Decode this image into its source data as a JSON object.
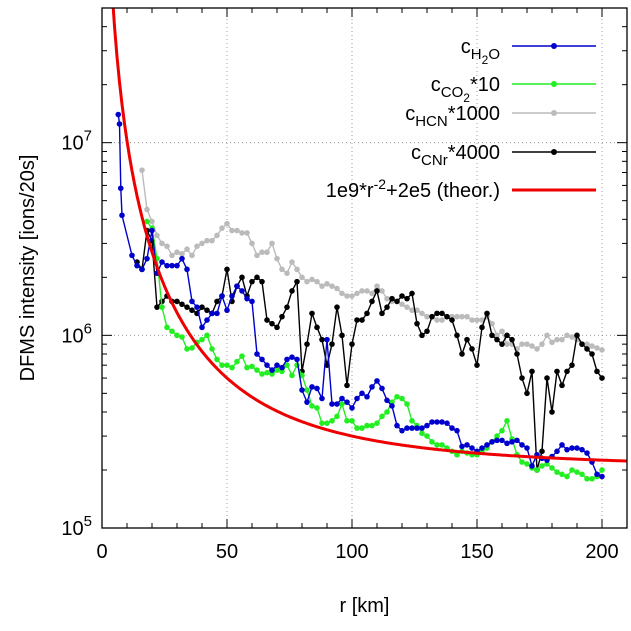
{
  "chart_data": {
    "type": "line",
    "xlabel": "r [km]",
    "ylabel": "DFMS intensity [ions/20s]",
    "xlim": [
      0,
      210
    ],
    "ylim": [
      100000,
      50000000
    ],
    "y_scale": "log",
    "grid": "dotted",
    "legend_position": "top-right",
    "x_ticks": [
      {
        "value": 0,
        "label": "0"
      },
      {
        "value": 50,
        "label": "50"
      },
      {
        "value": 100,
        "label": "100"
      },
      {
        "value": 150,
        "label": "150"
      },
      {
        "value": 200,
        "label": "200"
      }
    ],
    "y_ticks": [
      {
        "value": 100000,
        "base": "10",
        "exp": "5"
      },
      {
        "value": 1000000,
        "base": "10",
        "exp": "6"
      },
      {
        "value": 10000000,
        "base": "10",
        "exp": "7"
      }
    ],
    "series": [
      {
        "name": "cH2O",
        "legend": {
          "base": "c",
          "sub": "H",
          "sub2": "2",
          "sub3": "O",
          "suffix": ""
        },
        "color": "#0000cc",
        "x": [
          6.5,
          7,
          7.5,
          8,
          12,
          14,
          16,
          18,
          20,
          22,
          24,
          26,
          28,
          30,
          32,
          34,
          36,
          38,
          40,
          42,
          44,
          46,
          48,
          50,
          52,
          54,
          56,
          58,
          60,
          62,
          64,
          66,
          68,
          70,
          72,
          74,
          76,
          78,
          80,
          82,
          84,
          86,
          88,
          90,
          92,
          94,
          96,
          98,
          100,
          102,
          104,
          106,
          108,
          110,
          112,
          114,
          116,
          118,
          120,
          122,
          124,
          126,
          128,
          130,
          132,
          134,
          136,
          138,
          140,
          142,
          144,
          146,
          148,
          150,
          152,
          154,
          156,
          158,
          160,
          162,
          164,
          166,
          168,
          170,
          172,
          174,
          176,
          178,
          180,
          182,
          184,
          186,
          188,
          190,
          192,
          194,
          196,
          198,
          200
        ],
        "y": [
          14000000,
          12500000,
          5800000,
          4200000,
          2600000,
          2300000,
          2200000,
          2500000,
          3500000,
          2100000,
          2400000,
          2300000,
          2300000,
          2300000,
          2500000,
          2200000,
          1500000,
          1400000,
          1100000,
          1200000,
          1300000,
          1300000,
          1600000,
          1350000,
          1600000,
          1800000,
          1700000,
          1550000,
          1500000,
          800000,
          750000,
          700000,
          660000,
          700000,
          680000,
          750000,
          770000,
          750000,
          520000,
          450000,
          540000,
          530000,
          470000,
          950000,
          440000,
          440000,
          470000,
          450000,
          420000,
          470000,
          500000,
          480000,
          540000,
          580000,
          530000,
          460000,
          430000,
          340000,
          320000,
          330000,
          330000,
          330000,
          330000,
          340000,
          355000,
          355000,
          355000,
          350000,
          330000,
          320000,
          265000,
          270000,
          260000,
          250000,
          260000,
          270000,
          280000,
          285000,
          285000,
          275000,
          280000,
          285000,
          270000,
          260000,
          210000,
          240000,
          230000,
          225000,
          235000,
          250000,
          270000,
          255000,
          260000,
          260000,
          255000,
          245000,
          220000,
          190000,
          185000
        ]
      },
      {
        "name": "cCO2*10",
        "legend": {
          "base": "c",
          "sub": "CO",
          "sub2": "2",
          "sub3": "",
          "suffix": "*10"
        },
        "color": "#22ee22",
        "x": [
          18,
          20,
          22,
          24,
          26,
          28,
          30,
          32,
          34,
          36,
          38,
          40,
          42,
          44,
          46,
          48,
          50,
          52,
          54,
          56,
          58,
          60,
          62,
          64,
          66,
          68,
          70,
          72,
          74,
          76,
          78,
          80,
          82,
          84,
          86,
          88,
          90,
          92,
          94,
          96,
          98,
          100,
          102,
          104,
          106,
          108,
          110,
          112,
          114,
          116,
          118,
          120,
          122,
          124,
          126,
          128,
          130,
          132,
          134,
          136,
          138,
          140,
          142,
          144,
          146,
          148,
          150,
          152,
          154,
          156,
          158,
          160,
          162,
          164,
          166,
          168,
          170,
          172,
          174,
          176,
          178,
          180,
          182,
          184,
          186,
          188,
          190,
          192,
          194,
          196,
          198,
          200
        ],
        "y": [
          3900000,
          3600000,
          2500000,
          1400000,
          1100000,
          1050000,
          1000000,
          980000,
          850000,
          860000,
          920000,
          950000,
          1000000,
          850000,
          750000,
          700000,
          700000,
          680000,
          730000,
          780000,
          680000,
          690000,
          660000,
          630000,
          640000,
          630000,
          660000,
          650000,
          700000,
          620000,
          700000,
          620000,
          520000,
          430000,
          420000,
          350000,
          350000,
          360000,
          380000,
          440000,
          360000,
          360000,
          330000,
          330000,
          340000,
          340000,
          350000,
          380000,
          400000,
          450000,
          480000,
          470000,
          440000,
          360000,
          340000,
          310000,
          300000,
          280000,
          270000,
          270000,
          260000,
          250000,
          240000,
          250000,
          245000,
          240000,
          240000,
          250000,
          260000,
          280000,
          300000,
          320000,
          360000,
          290000,
          240000,
          220000,
          215000,
          205000,
          200000,
          210000,
          215000,
          205000,
          195000,
          190000,
          185000,
          200000,
          195000,
          190000,
          180000,
          180000,
          185000,
          200000
        ]
      },
      {
        "name": "cHCN*1000",
        "legend": {
          "base": "c",
          "sub": "HCN",
          "sub2": "",
          "sub3": "",
          "suffix": "*1000"
        },
        "color": "#bbbbbb",
        "x": [
          16,
          18,
          20,
          22,
          24,
          26,
          28,
          30,
          32,
          34,
          36,
          38,
          40,
          42,
          44,
          46,
          48,
          50,
          52,
          54,
          56,
          58,
          60,
          62,
          64,
          66,
          68,
          70,
          72,
          74,
          76,
          78,
          80,
          82,
          84,
          86,
          88,
          90,
          92,
          94,
          96,
          98,
          100,
          102,
          104,
          106,
          108,
          110,
          112,
          114,
          116,
          118,
          120,
          122,
          124,
          126,
          128,
          130,
          132,
          134,
          136,
          138,
          140,
          142,
          144,
          146,
          148,
          150,
          152,
          154,
          156,
          158,
          160,
          162,
          164,
          166,
          168,
          170,
          172,
          174,
          176,
          178,
          180,
          182,
          184,
          186,
          188,
          190,
          192,
          194,
          196,
          198,
          200
        ],
        "y": [
          7200000,
          4500000,
          3900000,
          3300000,
          3000000,
          2900000,
          2600000,
          2700000,
          2650000,
          2800000,
          2600000,
          2900000,
          3000000,
          3100000,
          3100000,
          3300000,
          3600000,
          3800000,
          3500000,
          3500000,
          3400000,
          3400000,
          3000000,
          2600000,
          2700000,
          2700000,
          3000000,
          2500000,
          2200000,
          2100000,
          2400000,
          2200000,
          2000000,
          1900000,
          1950000,
          1900000,
          1800000,
          1850000,
          1800000,
          1750000,
          1650000,
          1600000,
          1600000,
          1650000,
          1700000,
          1700000,
          1650000,
          1800000,
          1700000,
          1550000,
          1500000,
          1500000,
          1450000,
          1400000,
          1350000,
          1350000,
          1300000,
          1250000,
          1250000,
          1200000,
          1200000,
          1250000,
          1250000,
          1250000,
          1250000,
          1250000,
          1200000,
          1200000,
          1200000,
          1250000,
          1150000,
          1000000,
          1050000,
          900000,
          900000,
          850000,
          900000,
          900000,
          880000,
          850000,
          900000,
          1000000,
          920000,
          950000,
          950000,
          1000000,
          980000,
          950000,
          900000,
          900000,
          880000,
          860000,
          840000
        ]
      },
      {
        "name": "cCNr*4000",
        "legend": {
          "base": "c",
          "sub": "CNr",
          "sub2": "",
          "sub3": "",
          "suffix": "*4000"
        },
        "color": "#000000",
        "x": [
          14,
          16,
          18,
          20,
          22,
          24,
          26,
          28,
          30,
          32,
          34,
          36,
          38,
          40,
          42,
          44,
          46,
          48,
          50,
          52,
          54,
          56,
          58,
          60,
          62,
          64,
          66,
          68,
          70,
          72,
          74,
          76,
          78,
          80,
          82,
          84,
          86,
          88,
          90,
          92,
          94,
          96,
          98,
          100,
          102,
          104,
          106,
          108,
          110,
          112,
          114,
          116,
          118,
          120,
          122,
          124,
          126,
          128,
          130,
          132,
          134,
          136,
          138,
          140,
          142,
          144,
          146,
          148,
          150,
          152,
          154,
          156,
          158,
          160,
          162,
          164,
          166,
          168,
          170,
          172,
          174,
          176,
          178,
          180,
          182,
          184,
          186,
          188,
          190,
          192,
          194,
          196,
          198,
          200
        ],
        "y": [
          2400000,
          2200000,
          3500000,
          3100000,
          1400000,
          1500000,
          1600000,
          1500000,
          1500000,
          1450000,
          1400000,
          1350000,
          1300000,
          1400000,
          1350000,
          1300000,
          1500000,
          1600000,
          2200000,
          1500000,
          1800000,
          2000000,
          1600000,
          1900000,
          2000000,
          1900000,
          1200000,
          1150000,
          1100000,
          1250000,
          1400000,
          1700000,
          1900000,
          650000,
          900000,
          1300000,
          1100000,
          950000,
          700000,
          900000,
          1400000,
          1000000,
          550000,
          900000,
          1200000,
          1200000,
          1300000,
          1500000,
          1700000,
          1300000,
          1400000,
          1550000,
          1500000,
          1600000,
          1550000,
          1650000,
          1150000,
          1000000,
          1050000,
          1250000,
          1300000,
          1300000,
          1250000,
          1200000,
          1000000,
          800000,
          950000,
          850000,
          700000,
          1100000,
          1300000,
          1000000,
          950000,
          900000,
          1000000,
          950000,
          800000,
          600000,
          500000,
          650000,
          200000,
          250000,
          600000,
          400000,
          650000,
          550000,
          650000,
          700000,
          1000000,
          900000,
          850000,
          800000,
          650000,
          600000
        ]
      },
      {
        "name": "1e9*r^-2+2e5 (theor.)",
        "legend": {
          "base": "1e9*r",
          "sup": "-2",
          "suffix": "+2e5 (theor.)"
        },
        "color": "#ee0000",
        "kind": "theory",
        "formula": "1e9*r^-2+2e5"
      }
    ]
  }
}
